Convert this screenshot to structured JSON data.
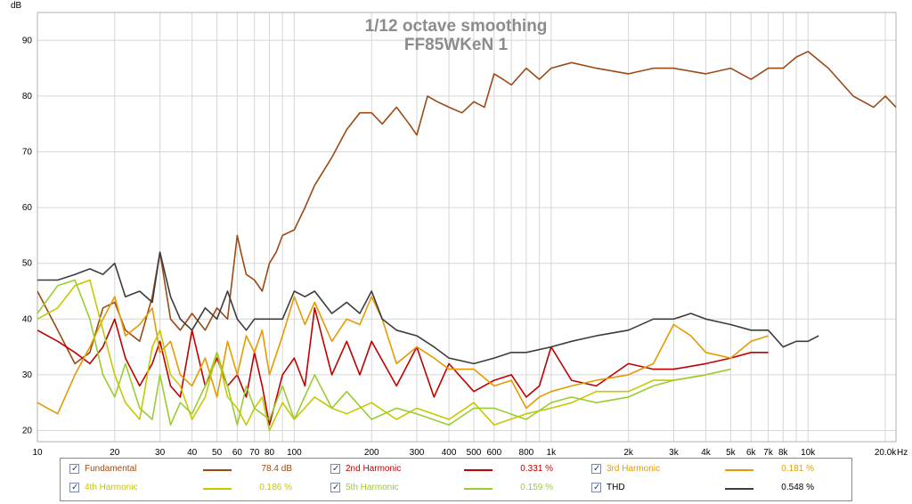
{
  "chart_data": {
    "type": "line",
    "title": "1/12 octave smoothing",
    "subtitle": "FF85WKeN 1",
    "xlabel": "Hz",
    "ylabel": "dB",
    "x_scale": "log",
    "xlim": [
      10,
      22000
    ],
    "ylim": [
      18,
      95
    ],
    "grid": true,
    "x_ticks": [
      {
        "v": 10,
        "t": "10"
      },
      {
        "v": 20,
        "t": "20"
      },
      {
        "v": 30,
        "t": "30"
      },
      {
        "v": 40,
        "t": "40"
      },
      {
        "v": 50,
        "t": "50"
      },
      {
        "v": 60,
        "t": "60"
      },
      {
        "v": 70,
        "t": "70"
      },
      {
        "v": 80,
        "t": "80"
      },
      {
        "v": 100,
        "t": "100"
      },
      {
        "v": 200,
        "t": "200"
      },
      {
        "v": 300,
        "t": "300"
      },
      {
        "v": 400,
        "t": "400"
      },
      {
        "v": 500,
        "t": "500"
      },
      {
        "v": 600,
        "t": "600"
      },
      {
        "v": 800,
        "t": "800"
      },
      {
        "v": 1000,
        "t": "1k"
      },
      {
        "v": 2000,
        "t": "2k"
      },
      {
        "v": 3000,
        "t": "3k"
      },
      {
        "v": 4000,
        "t": "4k"
      },
      {
        "v": 5000,
        "t": "5k"
      },
      {
        "v": 6000,
        "t": "6k"
      },
      {
        "v": 7000,
        "t": "7k"
      },
      {
        "v": 8000,
        "t": "8k"
      },
      {
        "v": 10000,
        "t": "10k"
      },
      {
        "v": 20000,
        "t": "20.0k"
      }
    ],
    "y_ticks": [
      20,
      30,
      40,
      50,
      60,
      70,
      80,
      90
    ],
    "legend_position": "bottom",
    "series": [
      {
        "name": "Fundamental",
        "color": "#9b4a14",
        "value_label": "78.4 dB",
        "x": [
          10,
          12,
          14,
          16,
          18,
          20,
          22,
          25,
          28,
          30,
          33,
          36,
          40,
          45,
          50,
          55,
          60,
          62,
          65,
          70,
          75,
          80,
          85,
          90,
          100,
          110,
          120,
          140,
          160,
          180,
          200,
          220,
          250,
          280,
          300,
          330,
          360,
          400,
          450,
          500,
          550,
          600,
          650,
          700,
          800,
          900,
          1000,
          1200,
          1500,
          2000,
          2500,
          3000,
          4000,
          5000,
          6000,
          7000,
          8000,
          9000,
          10000,
          12000,
          15000,
          18000,
          20000,
          22000
        ],
        "y": [
          45,
          38,
          32,
          34,
          42,
          43,
          38,
          36,
          44,
          52,
          40,
          38,
          41,
          38,
          42,
          40,
          55,
          52,
          48,
          47,
          45,
          50,
          52,
          55,
          56,
          60,
          64,
          69,
          74,
          77,
          77,
          75,
          78,
          75,
          73,
          80,
          79,
          78,
          77,
          79,
          78,
          84,
          83,
          82,
          85,
          83,
          85,
          86,
          85,
          84,
          85,
          85,
          84,
          85,
          83,
          85,
          85,
          87,
          88,
          85,
          80,
          78,
          80,
          78
        ]
      },
      {
        "name": "2nd Harmonic",
        "color": "#c00000",
        "value_label": "0.331 %",
        "x": [
          10,
          12,
          14,
          16,
          18,
          20,
          22,
          25,
          28,
          30,
          33,
          36,
          40,
          45,
          50,
          55,
          60,
          65,
          70,
          75,
          80,
          90,
          100,
          110,
          120,
          140,
          160,
          180,
          200,
          250,
          300,
          350,
          400,
          500,
          600,
          700,
          800,
          900,
          1000,
          1200,
          1500,
          2000,
          2500,
          3000,
          4000,
          5000,
          6000,
          7000
        ],
        "y": [
          38,
          36,
          34,
          32,
          35,
          40,
          33,
          28,
          32,
          36,
          28,
          26,
          38,
          28,
          33,
          28,
          30,
          26,
          34,
          28,
          21,
          30,
          33,
          28,
          42,
          30,
          36,
          30,
          36,
          28,
          35,
          26,
          32,
          27,
          29,
          30,
          26,
          28,
          35,
          29,
          28,
          32,
          31,
          31,
          32,
          33,
          34,
          34
        ]
      },
      {
        "name": "3rd Harmonic",
        "color": "#e69a00",
        "value_label": "0.181 %",
        "x": [
          10,
          12,
          14,
          16,
          18,
          20,
          22,
          25,
          28,
          30,
          33,
          36,
          40,
          45,
          50,
          55,
          60,
          65,
          70,
          75,
          80,
          90,
          100,
          110,
          120,
          140,
          160,
          180,
          200,
          220,
          250,
          300,
          350,
          400,
          500,
          600,
          700,
          800,
          900,
          1000,
          1200,
          1500,
          2000,
          2500,
          3000,
          3500,
          4000,
          5000,
          6000,
          7000
        ],
        "y": [
          25,
          23,
          30,
          35,
          40,
          44,
          37,
          39,
          42,
          34,
          36,
          30,
          28,
          33,
          26,
          36,
          30,
          37,
          34,
          38,
          30,
          37,
          44,
          39,
          43,
          36,
          40,
          39,
          44,
          40,
          32,
          35,
          33,
          31,
          31,
          28,
          29,
          24,
          26,
          27,
          28,
          29,
          30,
          32,
          39,
          37,
          34,
          33,
          36,
          37
        ]
      },
      {
        "name": "4th Harmonic",
        "color": "#c8c800",
        "value_label": "0.186 %",
        "x": [
          10,
          12,
          14,
          16,
          18,
          20,
          22,
          25,
          28,
          30,
          33,
          36,
          40,
          45,
          50,
          55,
          60,
          65,
          70,
          75,
          80,
          90,
          100,
          120,
          140,
          160,
          200,
          250,
          300,
          400,
          500,
          600,
          800,
          1000,
          1200,
          1500,
          2000,
          2500,
          3000,
          4000,
          5000
        ],
        "y": [
          40,
          42,
          46,
          47,
          38,
          30,
          25,
          22,
          35,
          38,
          30,
          28,
          22,
          26,
          34,
          26,
          24,
          21,
          24,
          26,
          20,
          25,
          22,
          26,
          24,
          23,
          25,
          22,
          24,
          22,
          25,
          21,
          23,
          24,
          25,
          27,
          27,
          29,
          29,
          30,
          31
        ]
      },
      {
        "name": "5th Harmonic",
        "color": "#9acd32",
        "value_label": "0.159 %",
        "x": [
          10,
          12,
          14,
          16,
          18,
          20,
          22,
          25,
          28,
          30,
          33,
          36,
          40,
          45,
          50,
          55,
          60,
          65,
          70,
          80,
          90,
          100,
          120,
          140,
          160,
          200,
          250,
          300,
          400,
          500,
          600,
          800,
          1000,
          1200,
          1500,
          2000,
          2500,
          3000,
          4000,
          5000
        ],
        "y": [
          41,
          46,
          47,
          40,
          30,
          26,
          32,
          24,
          22,
          30,
          21,
          25,
          23,
          28,
          34,
          28,
          21,
          28,
          24,
          22,
          28,
          22,
          30,
          24,
          27,
          22,
          24,
          23,
          21,
          24,
          24,
          22,
          25,
          26,
          25,
          26,
          28,
          29,
          30,
          31
        ]
      },
      {
        "name": "THD",
        "color": "#3c3c3c",
        "value_label": "0.548 %",
        "x": [
          10,
          12,
          14,
          16,
          18,
          20,
          22,
          25,
          28,
          30,
          33,
          36,
          40,
          45,
          50,
          55,
          60,
          65,
          70,
          80,
          90,
          100,
          110,
          120,
          140,
          160,
          180,
          200,
          220,
          250,
          300,
          350,
          400,
          500,
          600,
          700,
          800,
          1000,
          1200,
          1500,
          2000,
          2500,
          3000,
          3500,
          4000,
          5000,
          6000,
          7000,
          8000,
          9000,
          10000,
          11000
        ],
        "y": [
          47,
          47,
          48,
          49,
          48,
          50,
          44,
          45,
          43,
          52,
          44,
          40,
          38,
          42,
          40,
          45,
          40,
          38,
          40,
          40,
          40,
          45,
          44,
          45,
          41,
          43,
          41,
          45,
          40,
          38,
          37,
          35,
          33,
          32,
          33,
          34,
          34,
          35,
          36,
          37,
          38,
          40,
          40,
          41,
          40,
          39,
          38,
          38,
          35,
          36,
          36,
          37
        ]
      }
    ]
  }
}
